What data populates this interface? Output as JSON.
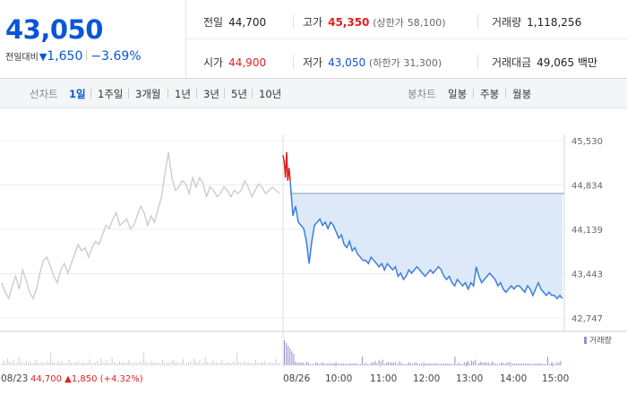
{
  "summary": {
    "price": "43,050",
    "change_label": "전일대비",
    "change_arrow": "▼",
    "change_amount": "1,650",
    "change_percent": "−3.69%",
    "prev_close_label": "전일",
    "prev_close": "44,700",
    "high_label": "고가",
    "high": "45,350",
    "upper_limit_label": "(상한가",
    "upper_limit": "58,100)",
    "volume_label": "거래량",
    "volume": "1,118,256",
    "open_label": "시가",
    "open": "44,900",
    "low_label": "저가",
    "low": "43,050",
    "lower_limit_label": "(하한가",
    "lower_limit": "31,300)",
    "trade_value_label": "거래대금",
    "trade_value": "49,065 백만"
  },
  "toolbar": {
    "line_chart_label": "선차트",
    "periods": [
      "1일",
      "1주일",
      "3개월",
      "1년",
      "3년",
      "5년",
      "10년"
    ],
    "active_period": "1일",
    "candle_chart_label": "봉차트",
    "candle_periods": [
      "일봉",
      "주봉",
      "월봉"
    ]
  },
  "colors": {
    "up": "#e02020",
    "down": "#0a56d8",
    "prev_day_line": "#cccccc",
    "fill": "#dde9f9",
    "volume": "#9b8ccf"
  },
  "chart_data": {
    "type": "line",
    "y_ticks": [
      "45,530",
      "44,834",
      "44,139",
      "43,443",
      "42,747"
    ],
    "y_tick_values": [
      45530,
      44834,
      44139,
      43443,
      42747
    ],
    "x_labels": [
      "08/23",
      "08/26",
      "10:00",
      "11:00",
      "12:00",
      "13:00",
      "14:00",
      "15:00"
    ],
    "prev_day_info": {
      "date": "08/23",
      "close": "44,700",
      "arrow": "▲",
      "change": "1,850",
      "percent": "(+4.32%)"
    },
    "baseline": 44700,
    "volume_legend": "거래량",
    "series": [
      {
        "id": "prev_day",
        "values": [
          43300,
          43150,
          43050,
          43250,
          43400,
          43200,
          43500,
          43350,
          43150,
          43050,
          43200,
          43450,
          43650,
          43700,
          43550,
          43400,
          43300,
          43500,
          43600,
          43450,
          43600,
          43750,
          43900,
          43800,
          43850,
          43700,
          43850,
          43950,
          43900,
          44050,
          44200,
          44150,
          44300,
          44400,
          44200,
          44250,
          44300,
          44150,
          44200,
          44350,
          44500,
          44400,
          44200,
          44350,
          44250,
          44450,
          44650,
          45000,
          45350,
          44950,
          44750,
          44800,
          44900,
          44850,
          44700,
          44950,
          44800,
          44950,
          44850,
          44650,
          44800,
          44750,
          44650,
          44700,
          44800,
          44750,
          44650,
          44750,
          44700,
          44750,
          44900,
          44800,
          44650,
          44750,
          44850,
          44800,
          44700,
          44750,
          44800,
          44750,
          44700
        ]
      },
      {
        "id": "today_pre_open",
        "values": [
          45300,
          45200,
          44950,
          45350,
          44900,
          45100,
          44900
        ]
      },
      {
        "id": "today",
        "values": [
          44900,
          44350,
          44500,
          44250,
          44200,
          44150,
          43950,
          43600,
          43950,
          44200,
          44250,
          44300,
          44200,
          44250,
          44150,
          44250,
          44200,
          44100,
          44000,
          44050,
          43900,
          43850,
          43950,
          43800,
          43850,
          43750,
          43700,
          43650,
          43650,
          43600,
          43700,
          43650,
          43600,
          43550,
          43600,
          43500,
          43600,
          43550,
          43500,
          43550,
          43400,
          43450,
          43350,
          43400,
          43500,
          43450,
          43500,
          43550,
          43500,
          43450,
          43400,
          43450,
          43500,
          43450,
          43500,
          43550,
          43500,
          43400,
          43350,
          43400,
          43300,
          43250,
          43350,
          43300,
          43250,
          43300,
          43200,
          43300,
          43250,
          43550,
          43400,
          43300,
          43350,
          43400,
          43450,
          43400,
          43350,
          43250,
          43300,
          43200,
          43150,
          43200,
          43250,
          43200,
          43250,
          43250,
          43200,
          43150,
          43250,
          43200,
          43100,
          43200,
          43300,
          43200,
          43150,
          43100,
          43150,
          43100,
          43100,
          43050,
          43100,
          43050
        ]
      }
    ]
  }
}
